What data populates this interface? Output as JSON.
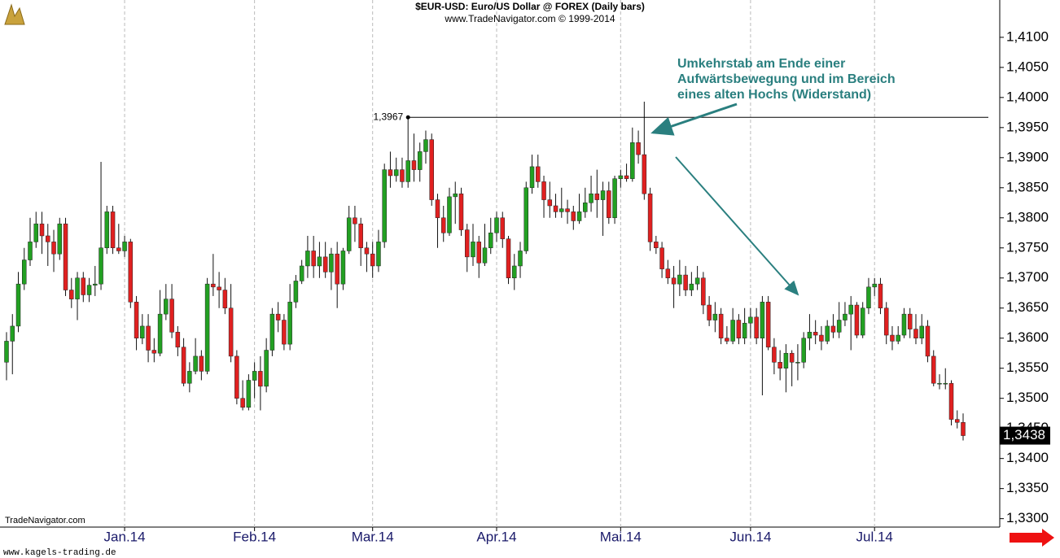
{
  "chart_data": {
    "type": "candlestick",
    "title": "$EUR-USD:  Euro/US Dollar @ FOREX  (Daily bars)",
    "subtitle": "www.TradeNavigator.com © 1999-2014",
    "watermark": "TradeNavigator.com",
    "footer": "www.kagels-trading.de",
    "annotation": [
      "Umkehrstab am Ende einer",
      "Aufwärtsbewegung und im Bereich",
      "eines alten Hochs (Widerstand)"
    ],
    "up_color": "#22a022",
    "down_color": "#e02020",
    "xgrid": true,
    "ylim": [
      1.3286,
      1.4162
    ],
    "yticks": [
      {
        "value": 1.33,
        "label": "1,3300"
      },
      {
        "value": 1.335,
        "label": "1,3350"
      },
      {
        "value": 1.34,
        "label": "1,3400"
      },
      {
        "value": 1.345,
        "label": "1,3450"
      },
      {
        "value": 1.35,
        "label": "1,3500"
      },
      {
        "value": 1.355,
        "label": "1,3550"
      },
      {
        "value": 1.36,
        "label": "1,3600"
      },
      {
        "value": 1.365,
        "label": "1,3650"
      },
      {
        "value": 1.37,
        "label": "1,3700"
      },
      {
        "value": 1.375,
        "label": "1,3750"
      },
      {
        "value": 1.38,
        "label": "1,3800"
      },
      {
        "value": 1.385,
        "label": "1,3850"
      },
      {
        "value": 1.39,
        "label": "1,3900"
      },
      {
        "value": 1.395,
        "label": "1,3950"
      },
      {
        "value": 1.4,
        "label": "1,4000"
      },
      {
        "value": 1.405,
        "label": "1,4050"
      },
      {
        "value": 1.41,
        "label": "1,4100"
      }
    ],
    "resistance": {
      "value": 1.3967,
      "label": "1,3967"
    },
    "last_price": {
      "value": 1.3438,
      "label": "1,3438"
    },
    "categories": [
      null,
      null,
      null,
      null,
      null,
      null,
      null,
      null,
      null,
      null,
      null,
      null,
      null,
      null,
      null,
      null,
      null,
      null,
      null,
      null,
      "Jan.14",
      null,
      null,
      null,
      null,
      null,
      null,
      null,
      null,
      null,
      null,
      null,
      null,
      null,
      null,
      null,
      null,
      null,
      null,
      null,
      null,
      null,
      "Feb.14",
      null,
      null,
      null,
      null,
      null,
      null,
      null,
      null,
      null,
      null,
      null,
      null,
      null,
      null,
      null,
      null,
      null,
      null,
      null,
      "Mar.14",
      null,
      null,
      null,
      null,
      null,
      null,
      null,
      null,
      null,
      null,
      null,
      null,
      null,
      null,
      null,
      null,
      null,
      null,
      null,
      null,
      "Apr.14",
      null,
      null,
      null,
      null,
      null,
      null,
      null,
      null,
      null,
      null,
      null,
      null,
      null,
      null,
      null,
      null,
      null,
      null,
      null,
      null,
      "Mai.14",
      null,
      null,
      null,
      null,
      null,
      null,
      null,
      null,
      null,
      null,
      null,
      null,
      null,
      null,
      null,
      null,
      null,
      null,
      null,
      null,
      null,
      "Jun.14",
      null,
      null,
      null,
      null,
      null,
      null,
      null,
      null,
      null,
      null,
      null,
      null,
      null,
      null,
      null,
      null,
      null,
      null,
      null,
      null,
      "Jul.14",
      null,
      null,
      null,
      null,
      null,
      null,
      null,
      null,
      null,
      null,
      null,
      null,
      null,
      null,
      null
    ],
    "ohlc": [
      [
        1.356,
        1.361,
        1.353,
        1.3595
      ],
      [
        1.3595,
        1.364,
        1.354,
        1.362
      ],
      [
        1.362,
        1.371,
        1.361,
        1.369
      ],
      [
        1.369,
        1.375,
        1.368,
        1.373
      ],
      [
        1.373,
        1.38,
        1.372,
        1.376
      ],
      [
        1.376,
        1.381,
        1.375,
        1.379
      ],
      [
        1.379,
        1.381,
        1.374,
        1.377
      ],
      [
        1.377,
        1.379,
        1.372,
        1.376
      ],
      [
        1.376,
        1.378,
        1.371,
        1.374
      ],
      [
        1.374,
        1.38,
        1.373,
        1.379
      ],
      [
        1.379,
        1.38,
        1.367,
        1.368
      ],
      [
        1.368,
        1.37,
        1.365,
        1.3665
      ],
      [
        1.3665,
        1.371,
        1.363,
        1.37
      ],
      [
        1.37,
        1.371,
        1.366,
        1.3672
      ],
      [
        1.3672,
        1.37,
        1.366,
        1.3688
      ],
      [
        1.3688,
        1.372,
        1.367,
        1.369
      ],
      [
        1.369,
        1.3893,
        1.368,
        1.375
      ],
      [
        1.375,
        1.382,
        1.374,
        1.381
      ],
      [
        1.381,
        1.382,
        1.374,
        1.375
      ],
      [
        1.375,
        1.379,
        1.374,
        1.3745
      ],
      [
        1.3745,
        1.377,
        1.3735,
        1.376
      ],
      [
        1.376,
        1.3765,
        1.365,
        1.366
      ],
      [
        1.366,
        1.367,
        1.358,
        1.36
      ],
      [
        1.36,
        1.364,
        1.359,
        1.362
      ],
      [
        1.362,
        1.364,
        1.356,
        1.358
      ],
      [
        1.358,
        1.36,
        1.356,
        1.3575
      ],
      [
        1.3575,
        1.368,
        1.357,
        1.364
      ],
      [
        1.364,
        1.369,
        1.363,
        1.3665
      ],
      [
        1.3665,
        1.369,
        1.36,
        1.361
      ],
      [
        1.361,
        1.362,
        1.357,
        1.3585
      ],
      [
        1.3585,
        1.36,
        1.352,
        1.3525
      ],
      [
        1.3525,
        1.356,
        1.351,
        1.3545
      ],
      [
        1.3545,
        1.36,
        1.354,
        1.357
      ],
      [
        1.357,
        1.358,
        1.353,
        1.3545
      ],
      [
        1.3545,
        1.37,
        1.354,
        1.369
      ],
      [
        1.369,
        1.374,
        1.367,
        1.3685
      ],
      [
        1.3685,
        1.371,
        1.365,
        1.368
      ],
      [
        1.368,
        1.37,
        1.364,
        1.365
      ],
      [
        1.365,
        1.369,
        1.356,
        1.357
      ],
      [
        1.357,
        1.358,
        1.349,
        1.35
      ],
      [
        1.35,
        1.353,
        1.348,
        1.3485
      ],
      [
        1.3485,
        1.354,
        1.348,
        1.353
      ],
      [
        1.353,
        1.356,
        1.35,
        1.3545
      ],
      [
        1.3545,
        1.357,
        1.348,
        1.352
      ],
      [
        1.352,
        1.36,
        1.351,
        1.358
      ],
      [
        1.358,
        1.365,
        1.357,
        1.364
      ],
      [
        1.364,
        1.366,
        1.361,
        1.363
      ],
      [
        1.363,
        1.364,
        1.358,
        1.359
      ],
      [
        1.359,
        1.369,
        1.358,
        1.366
      ],
      [
        1.366,
        1.3705,
        1.365,
        1.3695
      ],
      [
        1.3695,
        1.373,
        1.369,
        1.372
      ],
      [
        1.372,
        1.377,
        1.37,
        1.3745
      ],
      [
        1.3745,
        1.377,
        1.37,
        1.372
      ],
      [
        1.372,
        1.376,
        1.37,
        1.3735
      ],
      [
        1.3735,
        1.376,
        1.37,
        1.371
      ],
      [
        1.371,
        1.375,
        1.368,
        1.374
      ],
      [
        1.374,
        1.376,
        1.365,
        1.369
      ],
      [
        1.369,
        1.375,
        1.368,
        1.3745
      ],
      [
        1.3745,
        1.382,
        1.374,
        1.38
      ],
      [
        1.38,
        1.382,
        1.376,
        1.379
      ],
      [
        1.379,
        1.38,
        1.372,
        1.375
      ],
      [
        1.375,
        1.376,
        1.371,
        1.374
      ],
      [
        1.374,
        1.376,
        1.37,
        1.372
      ],
      [
        1.372,
        1.378,
        1.371,
        1.376
      ],
      [
        1.376,
        1.389,
        1.375,
        1.388
      ],
      [
        1.388,
        1.391,
        1.385,
        1.387
      ],
      [
        1.387,
        1.39,
        1.386,
        1.388
      ],
      [
        1.388,
        1.39,
        1.385,
        1.386
      ],
      [
        1.386,
        1.3967,
        1.385,
        1.3895
      ],
      [
        1.3895,
        1.394,
        1.386,
        1.388
      ],
      [
        1.388,
        1.3925,
        1.386,
        1.391
      ],
      [
        1.391,
        1.3945,
        1.389,
        1.393
      ],
      [
        1.393,
        1.394,
        1.382,
        1.383
      ],
      [
        1.383,
        1.384,
        1.375,
        1.38
      ],
      [
        1.38,
        1.382,
        1.376,
        1.3775
      ],
      [
        1.3775,
        1.385,
        1.377,
        1.3835
      ],
      [
        1.3835,
        1.386,
        1.379,
        1.384
      ],
      [
        1.384,
        1.385,
        1.377,
        1.378
      ],
      [
        1.378,
        1.379,
        1.371,
        1.3735
      ],
      [
        1.3735,
        1.379,
        1.372,
        1.376
      ],
      [
        1.376,
        1.377,
        1.37,
        1.3725
      ],
      [
        1.3725,
        1.379,
        1.372,
        1.375
      ],
      [
        1.375,
        1.38,
        1.374,
        1.3775
      ],
      [
        1.3775,
        1.381,
        1.376,
        1.38
      ],
      [
        1.38,
        1.381,
        1.375,
        1.3765
      ],
      [
        1.3765,
        1.377,
        1.369,
        1.37
      ],
      [
        1.37,
        1.374,
        1.368,
        1.372
      ],
      [
        1.372,
        1.376,
        1.37,
        1.3745
      ],
      [
        1.3745,
        1.386,
        1.374,
        1.385
      ],
      [
        1.385,
        1.3905,
        1.384,
        1.3885
      ],
      [
        1.3885,
        1.3905,
        1.385,
        1.386
      ],
      [
        1.386,
        1.387,
        1.38,
        1.383
      ],
      [
        1.383,
        1.386,
        1.38,
        1.382
      ],
      [
        1.382,
        1.384,
        1.38,
        1.381
      ],
      [
        1.381,
        1.385,
        1.38,
        1.3815
      ],
      [
        1.3815,
        1.383,
        1.379,
        1.381
      ],
      [
        1.381,
        1.382,
        1.378,
        1.3795
      ],
      [
        1.3795,
        1.384,
        1.379,
        1.381
      ],
      [
        1.381,
        1.385,
        1.38,
        1.3825
      ],
      [
        1.3825,
        1.387,
        1.381,
        1.384
      ],
      [
        1.384,
        1.388,
        1.38,
        1.383
      ],
      [
        1.383,
        1.386,
        1.377,
        1.3845
      ],
      [
        1.3845,
        1.386,
        1.379,
        1.38
      ],
      [
        1.38,
        1.387,
        1.379,
        1.3865
      ],
      [
        1.3865,
        1.388,
        1.385,
        1.387
      ],
      [
        1.387,
        1.389,
        1.386,
        1.3865
      ],
      [
        1.3865,
        1.395,
        1.386,
        1.3925
      ],
      [
        1.3925,
        1.3945,
        1.389,
        1.3905
      ],
      [
        1.3905,
        1.3993,
        1.383,
        1.384
      ],
      [
        1.384,
        1.385,
        1.3745,
        1.376
      ],
      [
        1.376,
        1.377,
        1.374,
        1.375
      ],
      [
        1.375,
        1.376,
        1.37,
        1.3715
      ],
      [
        1.3715,
        1.373,
        1.369,
        1.37
      ],
      [
        1.37,
        1.372,
        1.365,
        1.369
      ],
      [
        1.369,
        1.373,
        1.367,
        1.3705
      ],
      [
        1.3705,
        1.372,
        1.367,
        1.368
      ],
      [
        1.368,
        1.371,
        1.367,
        1.369
      ],
      [
        1.369,
        1.372,
        1.368,
        1.37
      ],
      [
        1.37,
        1.371,
        1.364,
        1.3655
      ],
      [
        1.3655,
        1.367,
        1.362,
        1.363
      ],
      [
        1.363,
        1.366,
        1.361,
        1.364
      ],
      [
        1.364,
        1.365,
        1.359,
        1.36
      ],
      [
        1.36,
        1.362,
        1.359,
        1.3595
      ],
      [
        1.3595,
        1.365,
        1.359,
        1.363
      ],
      [
        1.363,
        1.364,
        1.359,
        1.36
      ],
      [
        1.36,
        1.365,
        1.359,
        1.3625
      ],
      [
        1.3625,
        1.365,
        1.36,
        1.3635
      ],
      [
        1.3635,
        1.365,
        1.359,
        1.36
      ],
      [
        1.36,
        1.367,
        1.3505,
        1.366
      ],
      [
        1.366,
        1.367,
        1.358,
        1.3585
      ],
      [
        1.3585,
        1.36,
        1.354,
        1.356
      ],
      [
        1.356,
        1.358,
        1.353,
        1.355
      ],
      [
        1.355,
        1.359,
        1.351,
        1.3575
      ],
      [
        1.3575,
        1.358,
        1.352,
        1.356
      ],
      [
        1.356,
        1.359,
        1.353,
        1.356
      ],
      [
        1.356,
        1.361,
        1.355,
        1.36
      ],
      [
        1.36,
        1.364,
        1.358,
        1.361
      ],
      [
        1.361,
        1.363,
        1.359,
        1.3605
      ],
      [
        1.3605,
        1.362,
        1.358,
        1.3595
      ],
      [
        1.3595,
        1.363,
        1.359,
        1.362
      ],
      [
        1.362,
        1.364,
        1.36,
        1.361
      ],
      [
        1.361,
        1.366,
        1.36,
        1.363
      ],
      [
        1.363,
        1.366,
        1.362,
        1.364
      ],
      [
        1.364,
        1.367,
        1.358,
        1.3655
      ],
      [
        1.3655,
        1.366,
        1.36,
        1.3605
      ],
      [
        1.3605,
        1.366,
        1.36,
        1.365
      ],
      [
        1.365,
        1.37,
        1.364,
        1.3685
      ],
      [
        1.3685,
        1.37,
        1.367,
        1.369
      ],
      [
        1.369,
        1.37,
        1.364,
        1.365
      ],
      [
        1.365,
        1.366,
        1.359,
        1.3605
      ],
      [
        1.3605,
        1.362,
        1.358,
        1.3595
      ],
      [
        1.3595,
        1.362,
        1.359,
        1.3605
      ],
      [
        1.3605,
        1.365,
        1.36,
        1.364
      ],
      [
        1.364,
        1.365,
        1.36,
        1.3615
      ],
      [
        1.3615,
        1.364,
        1.359,
        1.36
      ],
      [
        1.36,
        1.364,
        1.359,
        1.362
      ],
      [
        1.362,
        1.363,
        1.356,
        1.357
      ],
      [
        1.357,
        1.358,
        1.352,
        1.3525
      ],
      [
        1.3525,
        1.354,
        1.3515,
        1.3525
      ],
      [
        1.3525,
        1.355,
        1.3515,
        1.3525
      ],
      [
        1.3525,
        1.353,
        1.3455,
        1.3465
      ],
      [
        1.3465,
        1.348,
        1.345,
        1.346
      ],
      [
        1.346,
        1.3475,
        1.343,
        1.3438
      ]
    ]
  }
}
